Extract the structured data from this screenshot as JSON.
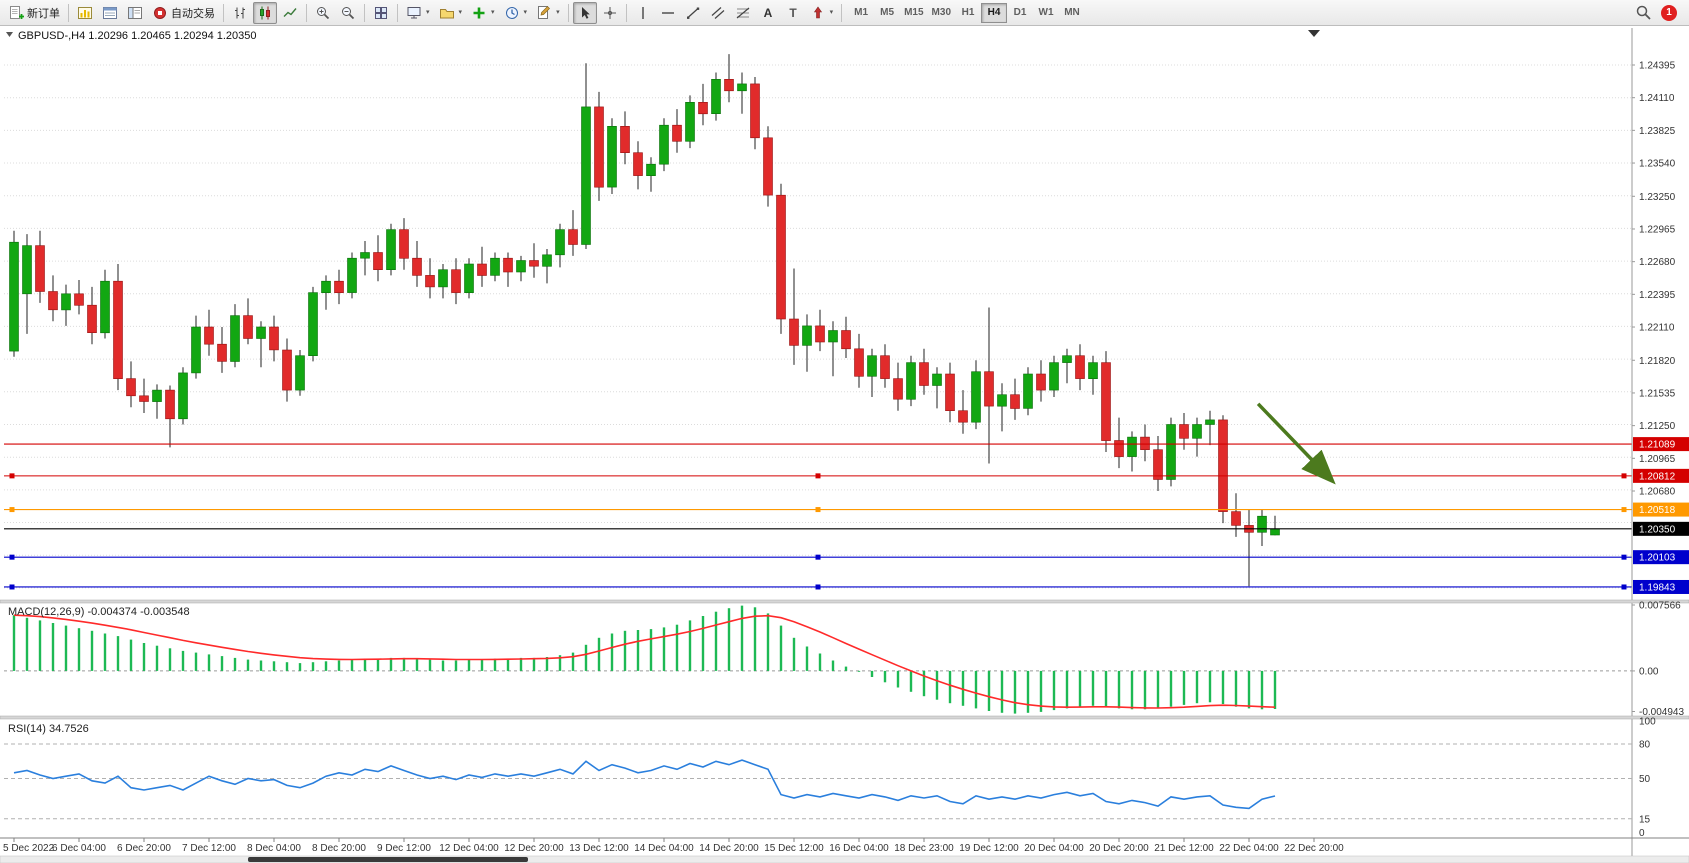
{
  "toolbar": {
    "new_order_label": "新订单",
    "autotrading_label": "自动交易",
    "tool_text_label": "A",
    "tool_textlabel_label": "T",
    "timeframes": [
      "M1",
      "M5",
      "M15",
      "M30",
      "H1",
      "H4",
      "D1",
      "W1",
      "MN"
    ],
    "active_timeframe": "H4",
    "active_tools": [
      "candlesticks",
      "cursor"
    ],
    "notification_count": "1",
    "icon_buttons": [
      "new-order",
      "charts",
      "data-window",
      "navigator",
      "autotrading",
      "ohlc-bars",
      "candlesticks",
      "line-chart",
      "zoom-in",
      "zoom-out",
      "tile-windows",
      "new-chart",
      "profiles",
      "indicators",
      "periods",
      "templates",
      "cursor",
      "crosshair",
      "vertical-line",
      "horizontal-line",
      "trendline",
      "equidistant-channel",
      "fibonacci",
      "text",
      "text-label",
      "arrows",
      "search",
      "notifications"
    ]
  },
  "chart_data": {
    "type": "candlestick",
    "symbol": "GBPUSD-",
    "period": "H4",
    "ohlc_display": {
      "open": "1.20296",
      "high": "1.20465",
      "low": "1.20294",
      "close": "1.20350"
    },
    "price_axis_ticks": [
      "1.24395",
      "1.24110",
      "1.23825",
      "1.23540",
      "1.23250",
      "1.22965",
      "1.22680",
      "1.22395",
      "1.22110",
      "1.21820",
      "1.21535",
      "1.21250",
      "1.20965",
      "1.20680"
    ],
    "time_axis_labels": [
      "5 Dec 2022",
      "6 Dec 04:00",
      "6 Dec 20:00",
      "7 Dec 12:00",
      "8 Dec 04:00",
      "8 Dec 20:00",
      "9 Dec 12:00",
      "12 Dec 04:00",
      "12 Dec 20:00",
      "13 Dec 12:00",
      "14 Dec 04:00",
      "14 Dec 20:00",
      "15 Dec 12:00",
      "16 Dec 04:00",
      "18 Dec 23:00",
      "19 Dec 12:00",
      "20 Dec 04:00",
      "20 Dec 20:00",
      "21 Dec 12:00",
      "22 Dec 04:00",
      "22 Dec 20:00"
    ],
    "hlines": [
      {
        "price": "1.21089",
        "value": 1.21089,
        "color": "#d40000",
        "selected": false
      },
      {
        "price": "1.20812",
        "value": 1.20812,
        "color": "#d40000",
        "selected": true
      },
      {
        "price": "1.20518",
        "value": 1.20518,
        "color": "#ff9900",
        "selected": true
      },
      {
        "price": "1.20350",
        "value": 1.2035,
        "color": "#000000",
        "selected": false
      },
      {
        "price": "1.20103",
        "value": 1.20103,
        "color": "#0000cc",
        "selected": true
      },
      {
        "price": "1.19843",
        "value": 1.19843,
        "color": "#0000cc",
        "selected": true
      }
    ],
    "arrow": {
      "from_bar": 95.7,
      "from_price": 1.2144,
      "to_bar": 101.3,
      "to_price": 1.2078,
      "color": "#4c7a1e"
    },
    "shift_marker_bar": 100,
    "candles": [
      [
        1.219,
        1.2295,
        1.2185,
        1.2285
      ],
      [
        1.224,
        1.2292,
        1.2205,
        1.2282
      ],
      [
        1.2282,
        1.2295,
        1.2232,
        1.2242
      ],
      [
        1.2242,
        1.2256,
        1.2216,
        1.2226
      ],
      [
        1.2226,
        1.2248,
        1.2212,
        1.224
      ],
      [
        1.224,
        1.2252,
        1.2222,
        1.223
      ],
      [
        1.223,
        1.2246,
        1.2196,
        1.2206
      ],
      [
        1.2206,
        1.2261,
        1.2201,
        1.2251
      ],
      [
        1.2251,
        1.2266,
        1.2156,
        1.2166
      ],
      [
        1.2166,
        1.2181,
        1.2141,
        1.2151
      ],
      [
        1.2151,
        1.2166,
        1.2136,
        1.2146
      ],
      [
        1.2146,
        1.2161,
        1.2131,
        1.2156
      ],
      [
        1.2156,
        1.216,
        1.2106,
        1.2131
      ],
      [
        1.2131,
        1.2176,
        1.2126,
        1.2171
      ],
      [
        1.2171,
        1.2221,
        1.2166,
        1.2211
      ],
      [
        1.2211,
        1.2226,
        1.2186,
        1.2196
      ],
      [
        1.2196,
        1.2211,
        1.2171,
        1.2181
      ],
      [
        1.2181,
        1.2231,
        1.2176,
        1.2221
      ],
      [
        1.2221,
        1.2236,
        1.2196,
        1.2201
      ],
      [
        1.2201,
        1.2216,
        1.2176,
        1.2211
      ],
      [
        1.2211,
        1.2221,
        1.2181,
        1.2191
      ],
      [
        1.2191,
        1.2201,
        1.2146,
        1.2156
      ],
      [
        1.2156,
        1.2191,
        1.2151,
        1.2186
      ],
      [
        1.2186,
        1.2246,
        1.2181,
        1.2241
      ],
      [
        1.2241,
        1.2256,
        1.2226,
        1.2251
      ],
      [
        1.2251,
        1.2261,
        1.2231,
        1.2241
      ],
      [
        1.2241,
        1.2276,
        1.2236,
        1.2271
      ],
      [
        1.2271,
        1.2286,
        1.2256,
        1.2276
      ],
      [
        1.2276,
        1.2291,
        1.2251,
        1.2261
      ],
      [
        1.2261,
        1.2301,
        1.2256,
        1.2296
      ],
      [
        1.2296,
        1.2306,
        1.2261,
        1.2271
      ],
      [
        1.2271,
        1.2286,
        1.2246,
        1.2256
      ],
      [
        1.2256,
        1.2271,
        1.2236,
        1.2246
      ],
      [
        1.2246,
        1.2266,
        1.2236,
        1.2261
      ],
      [
        1.2261,
        1.2271,
        1.2231,
        1.2241
      ],
      [
        1.2241,
        1.2271,
        1.2236,
        1.2266
      ],
      [
        1.2266,
        1.2281,
        1.2246,
        1.2256
      ],
      [
        1.2256,
        1.2276,
        1.2251,
        1.2271
      ],
      [
        1.2271,
        1.2276,
        1.2246,
        1.2259
      ],
      [
        1.2259,
        1.2273,
        1.2251,
        1.2269
      ],
      [
        1.2269,
        1.2284,
        1.2254,
        1.2264
      ],
      [
        1.2264,
        1.2279,
        1.2249,
        1.2274
      ],
      [
        1.2274,
        1.2301,
        1.2263,
        1.2296
      ],
      [
        1.2296,
        1.2313,
        1.2273,
        1.2283
      ],
      [
        1.2283,
        1.2441,
        1.2279,
        1.2403
      ],
      [
        1.2403,
        1.2416,
        1.2321,
        1.2333
      ],
      [
        1.2333,
        1.2393,
        1.2327,
        1.2386
      ],
      [
        1.2386,
        1.2399,
        1.2353,
        1.2363
      ],
      [
        1.2363,
        1.2373,
        1.2331,
        1.2343
      ],
      [
        1.2343,
        1.2359,
        1.2329,
        1.2353
      ],
      [
        1.2353,
        1.2393,
        1.2347,
        1.2387
      ],
      [
        1.2387,
        1.2401,
        1.2363,
        1.2373
      ],
      [
        1.2373,
        1.2413,
        1.2367,
        1.2407
      ],
      [
        1.2407,
        1.2423,
        1.2387,
        1.2397
      ],
      [
        1.2397,
        1.2433,
        1.2391,
        1.2427
      ],
      [
        1.2427,
        1.2449,
        1.2407,
        1.2417
      ],
      [
        1.2417,
        1.2433,
        1.2397,
        1.2423
      ],
      [
        1.2423,
        1.2429,
        1.2366,
        1.2376
      ],
      [
        1.2376,
        1.2386,
        1.2316,
        1.2326
      ],
      [
        1.2326,
        1.2336,
        1.2205,
        1.2218
      ],
      [
        1.2218,
        1.2262,
        1.2178,
        1.2195
      ],
      [
        1.2195,
        1.2222,
        1.2172,
        1.2212
      ],
      [
        1.2212,
        1.2226,
        1.219,
        1.2198
      ],
      [
        1.2198,
        1.2216,
        1.2168,
        1.2208
      ],
      [
        1.2208,
        1.222,
        1.2184,
        1.2192
      ],
      [
        1.2192,
        1.2205,
        1.2158,
        1.2168
      ],
      [
        1.2168,
        1.2192,
        1.215,
        1.2186
      ],
      [
        1.2186,
        1.2196,
        1.2158,
        1.2166
      ],
      [
        1.2166,
        1.218,
        1.2138,
        1.2148
      ],
      [
        1.2148,
        1.2186,
        1.2142,
        1.218
      ],
      [
        1.218,
        1.2192,
        1.2152,
        1.216
      ],
      [
        1.216,
        1.2176,
        1.214,
        1.217
      ],
      [
        1.217,
        1.218,
        1.2128,
        1.2138
      ],
      [
        1.2138,
        1.2156,
        1.2118,
        1.2128
      ],
      [
        1.2128,
        1.2182,
        1.2122,
        1.2172
      ],
      [
        1.2172,
        1.2228,
        1.2092,
        1.2142
      ],
      [
        1.2142,
        1.2162,
        1.212,
        1.2152
      ],
      [
        1.2152,
        1.2166,
        1.213,
        1.214
      ],
      [
        1.214,
        1.2176,
        1.2134,
        1.217
      ],
      [
        1.217,
        1.2182,
        1.2146,
        1.2156
      ],
      [
        1.2156,
        1.2186,
        1.215,
        1.218
      ],
      [
        1.218,
        1.2192,
        1.2162,
        1.2186
      ],
      [
        1.2186,
        1.2196,
        1.2156,
        1.2166
      ],
      [
        1.2166,
        1.2186,
        1.2152,
        1.218
      ],
      [
        1.218,
        1.219,
        1.2102,
        1.2112
      ],
      [
        1.2112,
        1.2132,
        1.2088,
        1.2098
      ],
      [
        1.2098,
        1.212,
        1.2085,
        1.2115
      ],
      [
        1.2115,
        1.2126,
        1.2094,
        1.2104
      ],
      [
        1.2104,
        1.2116,
        1.2068,
        1.2078
      ],
      [
        1.2078,
        1.2132,
        1.2072,
        1.2126
      ],
      [
        1.2126,
        1.2136,
        1.2104,
        1.2114
      ],
      [
        1.2114,
        1.2132,
        1.2098,
        1.2126
      ],
      [
        1.2126,
        1.2138,
        1.2108,
        1.213
      ],
      [
        1.213,
        1.2134,
        1.204,
        1.205
      ],
      [
        1.205,
        1.2066,
        1.2028,
        1.2038
      ],
      [
        1.2038,
        1.2052,
        1.1985,
        1.2032
      ],
      [
        1.2032,
        1.2052,
        1.202,
        1.2046
      ],
      [
        1.20296,
        1.20465,
        1.20294,
        1.2035
      ]
    ],
    "macd": {
      "label": "MACD(12,26,9)",
      "value_main": "-0.004374",
      "value_signal": "-0.003548",
      "axis": [
        "0.007566",
        "0.00",
        "-0.004943"
      ],
      "values": [
        0.0064,
        0.0061,
        0.0058,
        0.0055,
        0.0052,
        0.0049,
        0.0046,
        0.0043,
        0.004,
        0.0036,
        0.0032,
        0.0029,
        0.0026,
        0.0023,
        0.0021,
        0.0019,
        0.0017,
        0.0015,
        0.0013,
        0.0012,
        0.0011,
        0.001,
        0.0009,
        0.001,
        0.0011,
        0.0012,
        0.0013,
        0.0014,
        0.0014,
        0.0015,
        0.0015,
        0.0014,
        0.0013,
        0.0012,
        0.0012,
        0.0013,
        0.0013,
        0.0014,
        0.0014,
        0.0015,
        0.0015,
        0.0016,
        0.0018,
        0.0021,
        0.003,
        0.0038,
        0.0043,
        0.0046,
        0.0047,
        0.0048,
        0.005,
        0.0053,
        0.0058,
        0.0063,
        0.0068,
        0.0072,
        0.0075,
        0.0073,
        0.0066,
        0.0052,
        0.0038,
        0.0028,
        0.002,
        0.0012,
        0.0005,
        -0.0001,
        -0.0007,
        -0.0013,
        -0.0019,
        -0.0024,
        -0.0029,
        -0.0033,
        -0.0037,
        -0.004,
        -0.0043,
        -0.0046,
        -0.0048,
        -0.0049,
        -0.0048,
        -0.0047,
        -0.0045,
        -0.0043,
        -0.0041,
        -0.004,
        -0.0041,
        -0.0043,
        -0.0044,
        -0.0044,
        -0.0043,
        -0.0041,
        -0.0039,
        -0.0037,
        -0.0036,
        -0.0038,
        -0.0041,
        -0.0043,
        -0.0044,
        -0.004374
      ]
    },
    "rsi": {
      "label": "RSI(14)",
      "value": "34.7526",
      "levels": [
        80,
        50,
        15
      ],
      "axis": [
        "100",
        "80",
        "50",
        "15",
        "0"
      ],
      "values": [
        55,
        57,
        53,
        50,
        52,
        54,
        48,
        46,
        52,
        42,
        40,
        42,
        44,
        40,
        46,
        52,
        48,
        45,
        50,
        48,
        49,
        44,
        42,
        46,
        52,
        55,
        53,
        58,
        56,
        61,
        57,
        53,
        50,
        52,
        49,
        53,
        51,
        54,
        52,
        54,
        52,
        55,
        58,
        54,
        65,
        57,
        62,
        59,
        55,
        57,
        61,
        58,
        63,
        60,
        65,
        62,
        66,
        62,
        58,
        36,
        33,
        36,
        34,
        37,
        35,
        33,
        36,
        34,
        31,
        35,
        33,
        35,
        30,
        28,
        35,
        32,
        34,
        32,
        35,
        33,
        36,
        38,
        35,
        37,
        30,
        28,
        31,
        29,
        26,
        34,
        32,
        34,
        35,
        27,
        25,
        24,
        32,
        34.7526
      ]
    },
    "colors": {
      "bull": "#12a712",
      "bull_edge": "#0a6d0a",
      "bear": "#e12b2b",
      "bear_edge": "#951212",
      "wick": "#222222",
      "grid": "#dcdcdc",
      "axis_text": "#333333",
      "macd_hist": "#1db954",
      "macd_signal": "#ff2a2a",
      "rsi_line": "#2a7fdd"
    }
  }
}
